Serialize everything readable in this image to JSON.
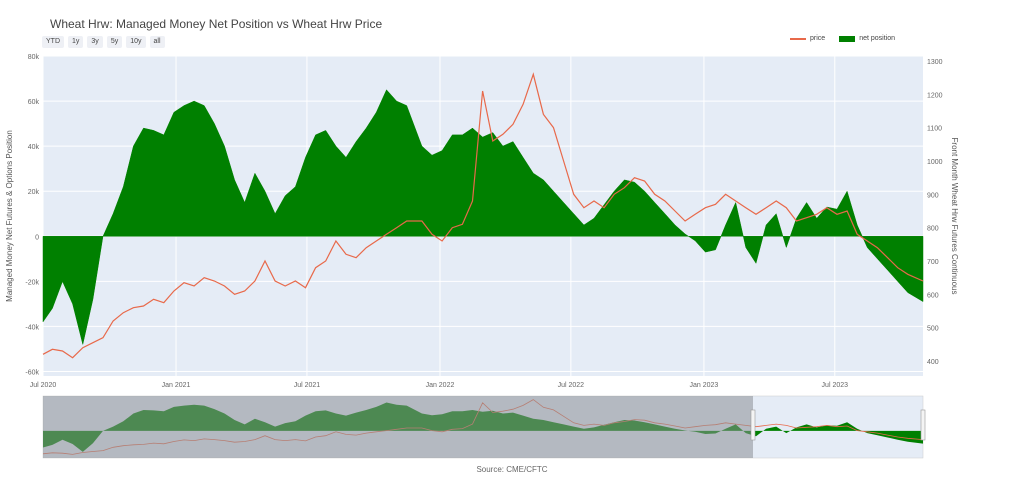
{
  "title": "Wheat Hrw: Managed Money Net Position vs Wheat Hrw Price",
  "range_buttons": [
    "YTD",
    "1y",
    "3y",
    "5y",
    "10y",
    "all"
  ],
  "legend": [
    {
      "label": "price",
      "color": "#e8694a",
      "kind": "line"
    },
    {
      "label": "net position",
      "color": "#008000",
      "kind": "box"
    }
  ],
  "source": "Source: CME/CFTC",
  "colors": {
    "plot_bg": "#e5ecf6",
    "net": "#008000",
    "price": "#e8694a",
    "mask": "#8c8f96"
  },
  "chart_data": {
    "type": "area",
    "title": "Wheat Hrw: Managed Money Net Position vs Wheat Hrw Price",
    "x_start": "2020-07-01",
    "x_end": "2023-10-31",
    "x_tick_labels": [
      "Jul 2020",
      "Jan 2021",
      "Jul 2021",
      "Jan 2022",
      "Jul 2022",
      "Jan 2023",
      "Jul 2023"
    ],
    "x_tick_dates": [
      "2020-07-01",
      "2021-01-01",
      "2021-07-01",
      "2022-01-01",
      "2022-07-01",
      "2023-01-01",
      "2023-07-01"
    ],
    "y_left": {
      "label": "Managed Money Net Futures & Options Position",
      "range": [
        -62000,
        80000
      ],
      "ticks": [
        -60000,
        -40000,
        -20000,
        0,
        20000,
        40000,
        60000,
        80000
      ],
      "tick_labels": [
        "-60k",
        "-40k",
        "-20k",
        "0",
        "20k",
        "40k",
        "60k",
        "80k"
      ]
    },
    "y_right": {
      "label": "Front Month Wheat Hrw Futures Continuous",
      "range": [
        355,
        1315
      ],
      "ticks": [
        400,
        500,
        600,
        700,
        800,
        900,
        1000,
        1100,
        1200,
        1300
      ],
      "tick_labels": [
        "400",
        "500",
        "600",
        "700",
        "800",
        "900",
        "1000",
        "1100",
        "1200",
        "1300"
      ]
    },
    "series": [
      {
        "name": "net position",
        "axis": "left",
        "points": [
          [
            "2020-07-01",
            -38000
          ],
          [
            "2020-07-14",
            -32000
          ],
          [
            "2020-07-28",
            -20000
          ],
          [
            "2020-08-11",
            -30000
          ],
          [
            "2020-08-25",
            -48000
          ],
          [
            "2020-09-08",
            -28000
          ],
          [
            "2020-09-22",
            0
          ],
          [
            "2020-10-06",
            10000
          ],
          [
            "2020-10-20",
            22000
          ],
          [
            "2020-11-03",
            40000
          ],
          [
            "2020-11-17",
            48000
          ],
          [
            "2020-12-01",
            47000
          ],
          [
            "2020-12-15",
            45000
          ],
          [
            "2020-12-29",
            55000
          ],
          [
            "2021-01-12",
            58000
          ],
          [
            "2021-01-26",
            60000
          ],
          [
            "2021-02-09",
            58000
          ],
          [
            "2021-02-23",
            50000
          ],
          [
            "2021-03-09",
            40000
          ],
          [
            "2021-03-23",
            25000
          ],
          [
            "2021-04-06",
            15000
          ],
          [
            "2021-04-20",
            28000
          ],
          [
            "2021-05-04",
            20000
          ],
          [
            "2021-05-18",
            10000
          ],
          [
            "2021-06-01",
            18000
          ],
          [
            "2021-06-15",
            22000
          ],
          [
            "2021-06-29",
            35000
          ],
          [
            "2021-07-13",
            45000
          ],
          [
            "2021-07-27",
            47000
          ],
          [
            "2021-08-10",
            40000
          ],
          [
            "2021-08-24",
            35000
          ],
          [
            "2021-09-07",
            42000
          ],
          [
            "2021-09-21",
            48000
          ],
          [
            "2021-10-05",
            55000
          ],
          [
            "2021-10-19",
            65000
          ],
          [
            "2021-11-02",
            60000
          ],
          [
            "2021-11-16",
            58000
          ],
          [
            "2021-12-07",
            40000
          ],
          [
            "2021-12-21",
            36000
          ],
          [
            "2022-01-04",
            38000
          ],
          [
            "2022-01-18",
            45000
          ],
          [
            "2022-02-01",
            45000
          ],
          [
            "2022-02-15",
            48000
          ],
          [
            "2022-03-01",
            44000
          ],
          [
            "2022-03-15",
            46000
          ],
          [
            "2022-03-29",
            40000
          ],
          [
            "2022-04-12",
            42000
          ],
          [
            "2022-04-26",
            35000
          ],
          [
            "2022-05-10",
            28000
          ],
          [
            "2022-05-24",
            25000
          ],
          [
            "2022-06-07",
            20000
          ],
          [
            "2022-06-21",
            15000
          ],
          [
            "2022-07-05",
            10000
          ],
          [
            "2022-07-19",
            5000
          ],
          [
            "2022-08-02",
            8000
          ],
          [
            "2022-08-16",
            14000
          ],
          [
            "2022-08-30",
            20000
          ],
          [
            "2022-09-13",
            25000
          ],
          [
            "2022-09-27",
            24000
          ],
          [
            "2022-10-11",
            20000
          ],
          [
            "2022-10-25",
            15000
          ],
          [
            "2022-11-08",
            10000
          ],
          [
            "2022-11-22",
            5000
          ],
          [
            "2022-12-06",
            1000
          ],
          [
            "2022-12-20",
            -2000
          ],
          [
            "2023-01-03",
            -7000
          ],
          [
            "2023-01-17",
            -6000
          ],
          [
            "2023-01-31",
            5000
          ],
          [
            "2023-02-14",
            15000
          ],
          [
            "2023-02-28",
            -5000
          ],
          [
            "2023-03-14",
            -12000
          ],
          [
            "2023-03-28",
            5000
          ],
          [
            "2023-04-11",
            10000
          ],
          [
            "2023-04-25",
            -5000
          ],
          [
            "2023-05-09",
            8000
          ],
          [
            "2023-05-23",
            15000
          ],
          [
            "2023-06-06",
            8000
          ],
          [
            "2023-06-20",
            13000
          ],
          [
            "2023-07-04",
            12000
          ],
          [
            "2023-07-18",
            20000
          ],
          [
            "2023-08-01",
            5000
          ],
          [
            "2023-08-15",
            -5000
          ],
          [
            "2023-08-29",
            -10000
          ],
          [
            "2023-09-12",
            -15000
          ],
          [
            "2023-09-26",
            -20000
          ],
          [
            "2023-10-10",
            -25000
          ],
          [
            "2023-10-31",
            -29000
          ]
        ]
      },
      {
        "name": "price",
        "axis": "right",
        "points": [
          [
            "2020-07-01",
            420
          ],
          [
            "2020-07-14",
            435
          ],
          [
            "2020-07-28",
            430
          ],
          [
            "2020-08-11",
            410
          ],
          [
            "2020-08-25",
            440
          ],
          [
            "2020-09-08",
            455
          ],
          [
            "2020-09-22",
            470
          ],
          [
            "2020-10-06",
            520
          ],
          [
            "2020-10-20",
            545
          ],
          [
            "2020-11-03",
            560
          ],
          [
            "2020-11-17",
            565
          ],
          [
            "2020-12-01",
            585
          ],
          [
            "2020-12-15",
            575
          ],
          [
            "2020-12-29",
            610
          ],
          [
            "2021-01-12",
            635
          ],
          [
            "2021-01-26",
            625
          ],
          [
            "2021-02-09",
            650
          ],
          [
            "2021-02-23",
            640
          ],
          [
            "2021-03-09",
            625
          ],
          [
            "2021-03-23",
            600
          ],
          [
            "2021-04-06",
            610
          ],
          [
            "2021-04-20",
            640
          ],
          [
            "2021-05-04",
            700
          ],
          [
            "2021-05-18",
            640
          ],
          [
            "2021-06-01",
            625
          ],
          [
            "2021-06-15",
            640
          ],
          [
            "2021-06-29",
            620
          ],
          [
            "2021-07-13",
            680
          ],
          [
            "2021-07-27",
            700
          ],
          [
            "2021-08-10",
            760
          ],
          [
            "2021-08-24",
            720
          ],
          [
            "2021-09-07",
            710
          ],
          [
            "2021-09-21",
            740
          ],
          [
            "2021-10-05",
            760
          ],
          [
            "2021-10-19",
            780
          ],
          [
            "2021-11-02",
            800
          ],
          [
            "2021-11-16",
            820
          ],
          [
            "2021-12-07",
            820
          ],
          [
            "2021-12-21",
            780
          ],
          [
            "2022-01-04",
            760
          ],
          [
            "2022-01-18",
            800
          ],
          [
            "2022-02-01",
            810
          ],
          [
            "2022-02-15",
            880
          ],
          [
            "2022-03-01",
            1210
          ],
          [
            "2022-03-15",
            1060
          ],
          [
            "2022-03-29",
            1080
          ],
          [
            "2022-04-12",
            1110
          ],
          [
            "2022-04-26",
            1170
          ],
          [
            "2022-05-10",
            1260
          ],
          [
            "2022-05-24",
            1140
          ],
          [
            "2022-06-07",
            1100
          ],
          [
            "2022-06-21",
            1000
          ],
          [
            "2022-07-05",
            900
          ],
          [
            "2022-07-19",
            860
          ],
          [
            "2022-08-02",
            880
          ],
          [
            "2022-08-16",
            860
          ],
          [
            "2022-08-30",
            900
          ],
          [
            "2022-09-13",
            920
          ],
          [
            "2022-09-27",
            950
          ],
          [
            "2022-10-11",
            940
          ],
          [
            "2022-10-25",
            900
          ],
          [
            "2022-11-08",
            880
          ],
          [
            "2022-11-22",
            850
          ],
          [
            "2022-12-06",
            820
          ],
          [
            "2022-12-20",
            840
          ],
          [
            "2023-01-03",
            860
          ],
          [
            "2023-01-17",
            870
          ],
          [
            "2023-01-31",
            900
          ],
          [
            "2023-02-14",
            880
          ],
          [
            "2023-02-28",
            860
          ],
          [
            "2023-03-14",
            840
          ],
          [
            "2023-03-28",
            860
          ],
          [
            "2023-04-11",
            880
          ],
          [
            "2023-04-25",
            860
          ],
          [
            "2023-05-09",
            820
          ],
          [
            "2023-05-23",
            830
          ],
          [
            "2023-06-06",
            840
          ],
          [
            "2023-06-20",
            860
          ],
          [
            "2023-07-04",
            840
          ],
          [
            "2023-07-18",
            850
          ],
          [
            "2023-08-01",
            780
          ],
          [
            "2023-08-15",
            760
          ],
          [
            "2023-08-29",
            740
          ],
          [
            "2023-09-12",
            710
          ],
          [
            "2023-09-26",
            680
          ],
          [
            "2023-10-10",
            660
          ],
          [
            "2023-10-31",
            640
          ]
        ]
      }
    ],
    "grid": true,
    "legend_position": "top-right",
    "range_slider": {
      "visible": true,
      "selected_from": "2020-07-01",
      "selected_to": "2023-10-31"
    }
  }
}
